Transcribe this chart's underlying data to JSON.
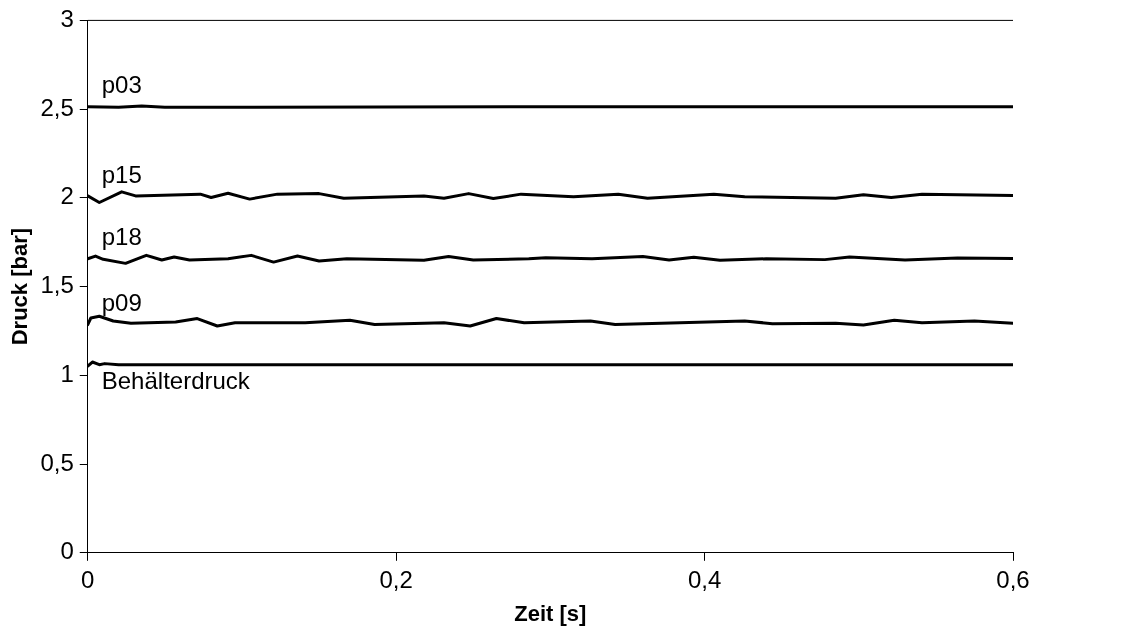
{
  "chart_data": {
    "type": "line",
    "xlabel": "Zeit [s]",
    "ylabel": "Druck [bar]",
    "xlim": [
      0,
      0.6
    ],
    "ylim": [
      0,
      3
    ],
    "xticks": [
      0,
      {
        "value": 0.2,
        "label": "0,2"
      },
      {
        "value": 0.4,
        "label": "0,4"
      },
      {
        "value": 0.6,
        "label": "0,6"
      }
    ],
    "yticks": [
      0,
      {
        "value": 0.5,
        "label": "0,5"
      },
      1,
      {
        "value": 1.5,
        "label": "1,5"
      },
      2,
      {
        "value": 2.5,
        "label": "2,5"
      },
      3
    ],
    "grid": false,
    "legend": false,
    "marker": "none",
    "line_style": "solid",
    "series": [
      {
        "name": "p03",
        "color": "#000000",
        "x": [
          0,
          0.02,
          0.035,
          0.05,
          0.3,
          0.6
        ],
        "values": [
          2.514,
          2.51,
          2.517,
          2.51,
          2.514,
          2.514
        ]
      },
      {
        "name": "p15",
        "color": "#000000",
        "x": [
          0,
          0.0075,
          0.022,
          0.031,
          0.073,
          0.08,
          0.091,
          0.105,
          0.123,
          0.15,
          0.166,
          0.218,
          0.231,
          0.247,
          0.263,
          0.281,
          0.315,
          0.344,
          0.363,
          0.406,
          0.426,
          0.485,
          0.503,
          0.521,
          0.541,
          0.6
        ],
        "values": [
          2.011,
          1.974,
          2.034,
          2.011,
          2.021,
          2.002,
          2.026,
          1.993,
          2.021,
          2.024,
          1.998,
          2.011,
          1.998,
          2.024,
          1.996,
          2.021,
          2.006,
          2.021,
          1.998,
          2.021,
          2.006,
          1.998,
          2.017,
          2.002,
          2.021,
          2.013
        ]
      },
      {
        "name": "p18",
        "color": "#000000",
        "x": [
          0,
          0.005,
          0.01,
          0.0245,
          0.038,
          0.048,
          0.056,
          0.066,
          0.091,
          0.106,
          0.1205,
          0.136,
          0.15,
          0.168,
          0.218,
          0.234,
          0.25,
          0.286,
          0.297,
          0.327,
          0.36,
          0.377,
          0.393,
          0.41,
          0.44,
          0.478,
          0.494,
          0.53,
          0.564,
          0.6
        ],
        "values": [
          1.657,
          1.672,
          1.654,
          1.631,
          1.676,
          1.65,
          1.667,
          1.65,
          1.657,
          1.676,
          1.638,
          1.672,
          1.644,
          1.657,
          1.648,
          1.669,
          1.65,
          1.657,
          1.663,
          1.657,
          1.669,
          1.65,
          1.665,
          1.648,
          1.657,
          1.652,
          1.667,
          1.65,
          1.661,
          1.659
        ]
      },
      {
        "name": "p09",
        "color": "#000000",
        "x": [
          0,
          0.002,
          0.0075,
          0.0165,
          0.028,
          0.057,
          0.071,
          0.084,
          0.0955,
          0.141,
          0.17,
          0.186,
          0.231,
          0.248,
          0.265,
          0.283,
          0.326,
          0.342,
          0.426,
          0.444,
          0.485,
          0.503,
          0.523,
          0.541,
          0.575,
          0.6
        ],
        "values": [
          1.286,
          1.323,
          1.333,
          1.306,
          1.293,
          1.3,
          1.32,
          1.278,
          1.296,
          1.296,
          1.31,
          1.286,
          1.296,
          1.278,
          1.32,
          1.296,
          1.306,
          1.286,
          1.306,
          1.291,
          1.293,
          1.284,
          1.31,
          1.296,
          1.306,
          1.293
        ]
      },
      {
        "name": "Behälterdruck",
        "color": "#000000",
        "x": [
          0,
          0.003,
          0.0075,
          0.011,
          0.02,
          0.6
        ],
        "values": [
          1.052,
          1.075,
          1.06,
          1.066,
          1.06,
          1.06
        ]
      }
    ]
  }
}
